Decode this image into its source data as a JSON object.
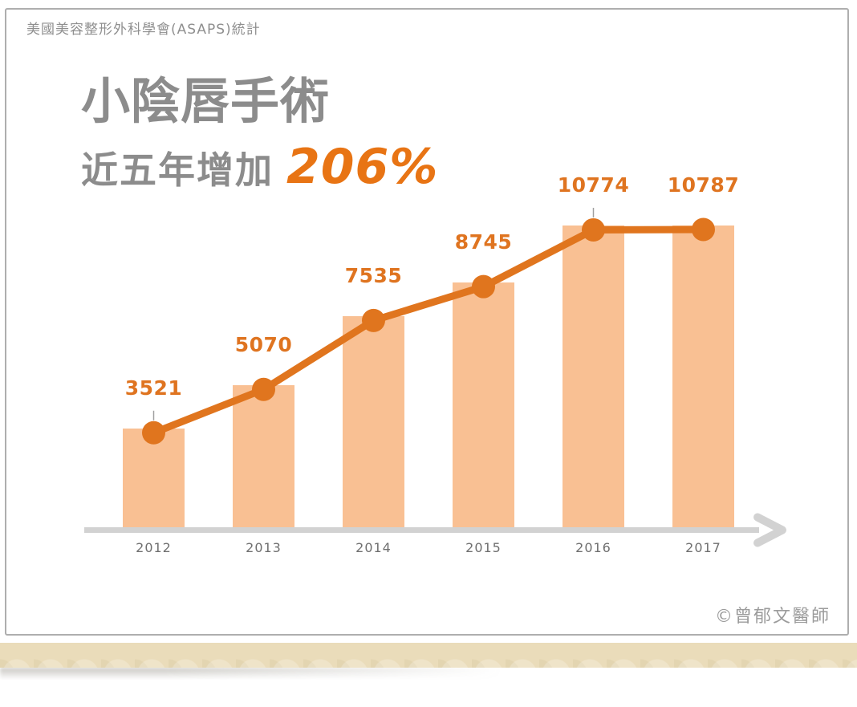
{
  "header": {
    "source_note": "美國美容整形外科學會(ASAPS)統計"
  },
  "title": {
    "line1": "小陰唇手術",
    "line2_prefix": "近五年增加",
    "line2_highlight": "206%"
  },
  "footer": {
    "copyright": "©曾郁文醫師"
  },
  "colors": {
    "bar_fill": "#f9c093",
    "line": "#e0751e",
    "marker": "#e0751e",
    "value_label": "#df7420",
    "highlight_percent": "#e87414",
    "axis": "#d2d2d2",
    "title_gray": "#8c8c8c",
    "whisker_gray": "#a0a0a0"
  },
  "chart_data": {
    "type": "bar",
    "overlay": "line-with-markers",
    "categories": [
      "2012",
      "2013",
      "2014",
      "2015",
      "2016",
      "2017"
    ],
    "values": [
      3521,
      5070,
      7535,
      8745,
      10774,
      10787
    ],
    "value_labels": [
      "3521",
      "5070",
      "7535",
      "8745",
      "10774",
      "10787"
    ],
    "title": "小陰唇手術 近五年增加 206%",
    "xlabel": "",
    "ylabel": "",
    "ylim": [
      0,
      11000
    ],
    "grid": false,
    "legend_position": "none",
    "x_axis_style": "gray-arrow"
  }
}
